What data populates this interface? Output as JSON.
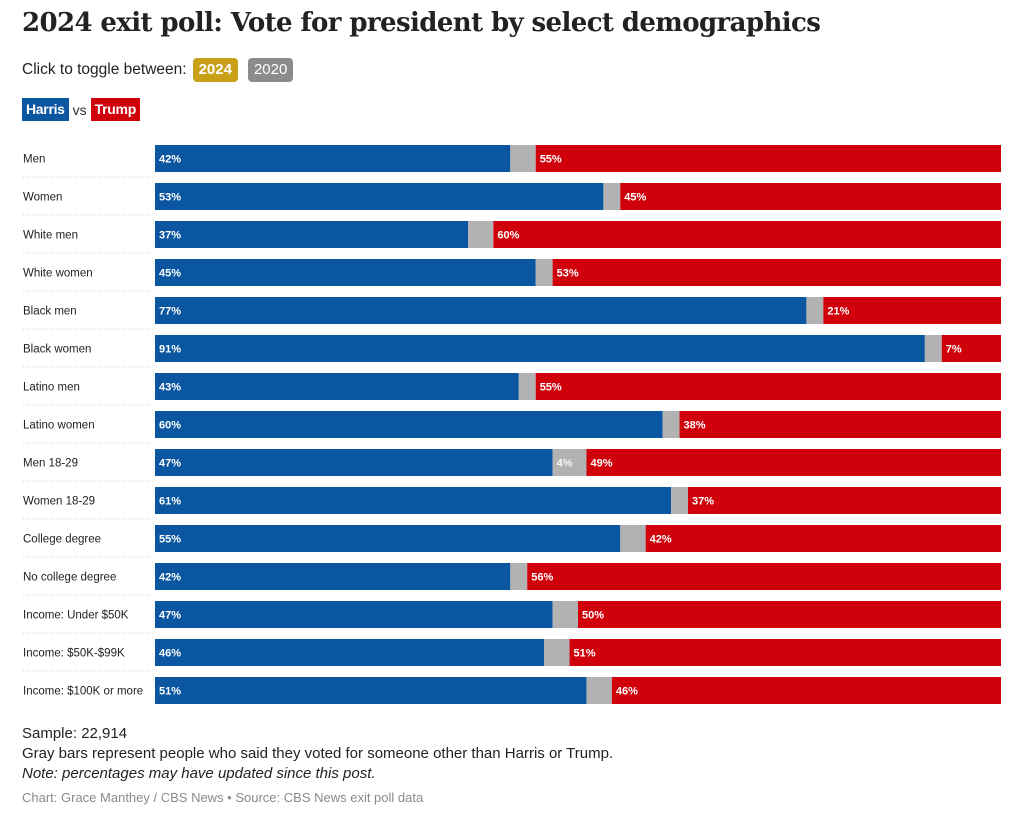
{
  "title": "2024 exit poll: Vote for president by select demographics",
  "toggle": {
    "prompt": "Click to toggle between:",
    "options": [
      "2024",
      "2020"
    ],
    "selected": "2024"
  },
  "legend": {
    "harris": "Harris",
    "vs": "vs",
    "trump": "Trump"
  },
  "colors": {
    "harris": "#0a56a0",
    "other": "#b2b2b2",
    "trump": "#d0010b",
    "toggle_active": "#c9a018",
    "toggle_inactive": "#8c8c8c"
  },
  "chart_data": {
    "type": "bar",
    "orientation": "horizontal-stacked-100",
    "categories": [
      "Men",
      "Women",
      "White men",
      "White women",
      "Black men",
      "Black women",
      "Latino men",
      "Latino women",
      "Men 18-29",
      "Women 18-29",
      "College degree",
      "No college degree",
      "Income: Under $50K",
      "Income: $50K-$99K",
      "Income: $100K or more"
    ],
    "series": [
      {
        "name": "Harris",
        "values": [
          42,
          53,
          37,
          45,
          77,
          91,
          43,
          60,
          47,
          61,
          55,
          42,
          47,
          46,
          51
        ]
      },
      {
        "values": [
          3,
          2,
          3,
          2,
          2,
          2,
          2,
          2,
          4,
          2,
          3,
          2,
          3,
          3,
          3
        ]
      },
      {
        "name": "Trump",
        "values": [
          55,
          45,
          60,
          53,
          21,
          7,
          55,
          38,
          49,
          37,
          42,
          56,
          50,
          51,
          46
        ]
      }
    ],
    "labels_shown_for_other": [
      "",
      "",
      "",
      "",
      "",
      "",
      "",
      "",
      "4%",
      "",
      "",
      "",
      "",
      "",
      ""
    ],
    "unit": "%",
    "xlim": [
      0,
      100
    ]
  },
  "footer": {
    "sample": "Sample: 22,914",
    "gray_note": "Gray bars represent people who said they voted for someone other than Harris or Trump.",
    "note": "Note: percentages may have updated since this post.",
    "credit": "Chart: Grace Manthey / CBS News • Source: CBS News exit poll data"
  }
}
